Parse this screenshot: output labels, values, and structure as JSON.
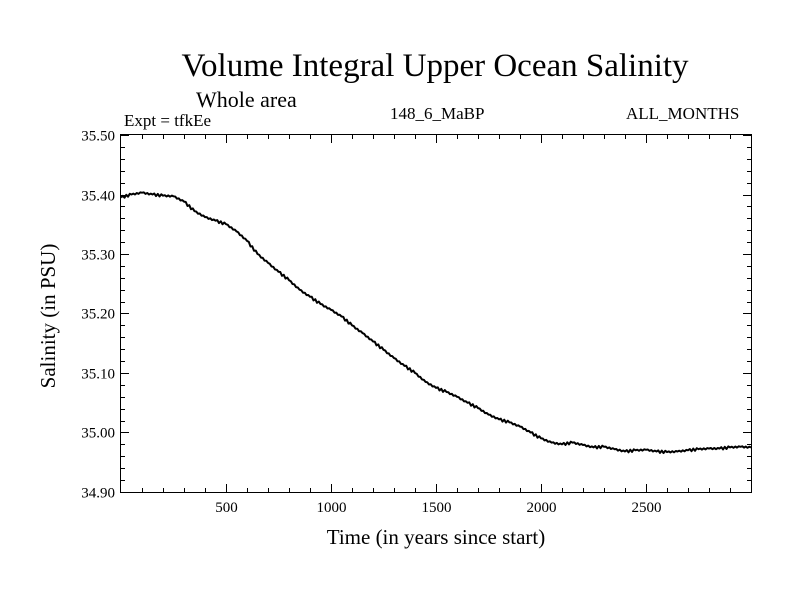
{
  "chart_data": {
    "type": "line",
    "title": "Volume Integral Upper Ocean Salinity",
    "subtitle": "Whole area",
    "left_label": "Expt = tfkEe",
    "center_label": "148_6_MaBP",
    "right_label": "ALL_MONTHS",
    "xlabel": "Time (in years since start)",
    "ylabel": "Salinity (in PSU)",
    "xlim": [
      0,
      3000
    ],
    "ylim": [
      34.9,
      35.5
    ],
    "xticks": [
      500,
      1000,
      1500,
      2000,
      2500
    ],
    "xtick_labels": [
      "500",
      "1000",
      "1500",
      "2000",
      "2500"
    ],
    "yticks": [
      34.9,
      35.0,
      35.1,
      35.2,
      35.3,
      35.4,
      35.5
    ],
    "ytick_labels": [
      "34.90",
      "35.00",
      "35.10",
      "35.20",
      "35.30",
      "35.40",
      "35.50"
    ],
    "grid": false,
    "color": "#000000",
    "series": [
      {
        "x": [
          0,
          50,
          100,
          150,
          200,
          250,
          300,
          350,
          400,
          450,
          500,
          550,
          600,
          650,
          700,
          750,
          800,
          850,
          900,
          950,
          1000,
          1050,
          1100,
          1150,
          1200,
          1250,
          1300,
          1350,
          1400,
          1450,
          1500,
          1550,
          1600,
          1650,
          1700,
          1750,
          1800,
          1850,
          1900,
          1950,
          2000,
          2050,
          2100,
          2150,
          2200,
          2250,
          2300,
          2350,
          2400,
          2450,
          2500,
          2550,
          2600,
          2650,
          2700,
          2750,
          2800,
          2850,
          2900,
          2950,
          3000
        ],
        "y": [
          35.395,
          35.4,
          35.403,
          35.4,
          35.398,
          35.397,
          35.388,
          35.372,
          35.362,
          35.356,
          35.35,
          35.338,
          35.322,
          35.3,
          35.285,
          35.27,
          35.256,
          35.24,
          35.228,
          35.216,
          35.206,
          35.195,
          35.18,
          35.167,
          35.153,
          35.139,
          35.125,
          35.112,
          35.1,
          35.085,
          35.075,
          35.068,
          35.06,
          35.05,
          35.041,
          35.03,
          35.022,
          35.017,
          35.01,
          35.0,
          34.99,
          34.983,
          34.98,
          34.983,
          34.979,
          34.975,
          34.976,
          34.972,
          34.968,
          34.97,
          34.971,
          34.968,
          34.967,
          34.968,
          34.97,
          34.972,
          34.973,
          34.973,
          34.975,
          34.976,
          34.975
        ]
      }
    ]
  }
}
